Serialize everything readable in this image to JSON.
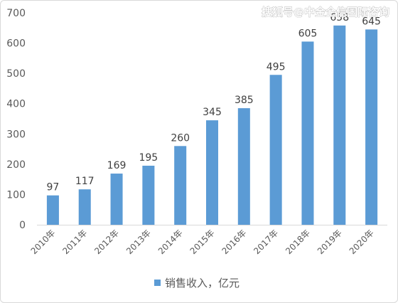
{
  "watermark": "搜狐号@中金企信国际咨询",
  "chart_data": {
    "type": "bar",
    "categories": [
      "2010年",
      "2011年",
      "2012年",
      "2013年",
      "2014年",
      "2015年",
      "2016年",
      "2017年",
      "2018年",
      "2019年",
      "2020年"
    ],
    "series": [
      {
        "name": "销售收入，亿元",
        "values": [
          97,
          117,
          169,
          195,
          260,
          345,
          385,
          495,
          605,
          658,
          645
        ],
        "color": "#5b9bd5"
      }
    ],
    "data_labels": [
      "97",
      "117",
      "169",
      "195",
      "260",
      "345",
      "385",
      "495",
      "605",
      "658",
      "645"
    ],
    "ylim": [
      0,
      700
    ],
    "yticks": [
      0,
      100,
      200,
      300,
      400,
      500,
      600,
      700
    ],
    "ytick_labels": [
      "0",
      "100",
      "200",
      "300",
      "400",
      "500",
      "600",
      "700"
    ],
    "grid": false,
    "legend_position": "bottom",
    "xlabel": "",
    "ylabel": "",
    "title": ""
  }
}
